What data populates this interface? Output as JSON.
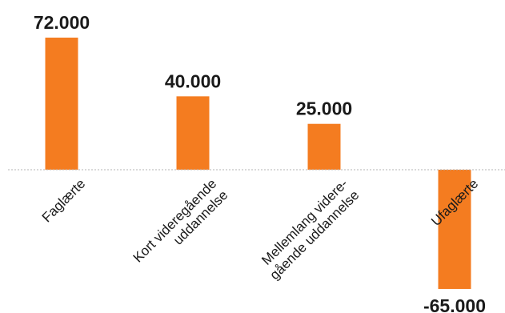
{
  "chart_data": {
    "type": "bar",
    "categories": [
      [
        "Faglærte"
      ],
      [
        "Kort videregående",
        "uddannelse"
      ],
      [
        "Mellemlang videre-",
        "gående uddannelse"
      ],
      [
        "Ufaglærte"
      ]
    ],
    "values": [
      72000,
      40000,
      25000,
      -65000
    ],
    "value_labels": [
      "72.000",
      "40.000",
      "25.000",
      "-65.000"
    ],
    "title": "",
    "xlabel": "",
    "ylabel": "",
    "ylim": [
      -65000,
      72000
    ],
    "grid": false,
    "bar_color": "#f47c20",
    "zero_line_color": "#b3b3b3"
  }
}
